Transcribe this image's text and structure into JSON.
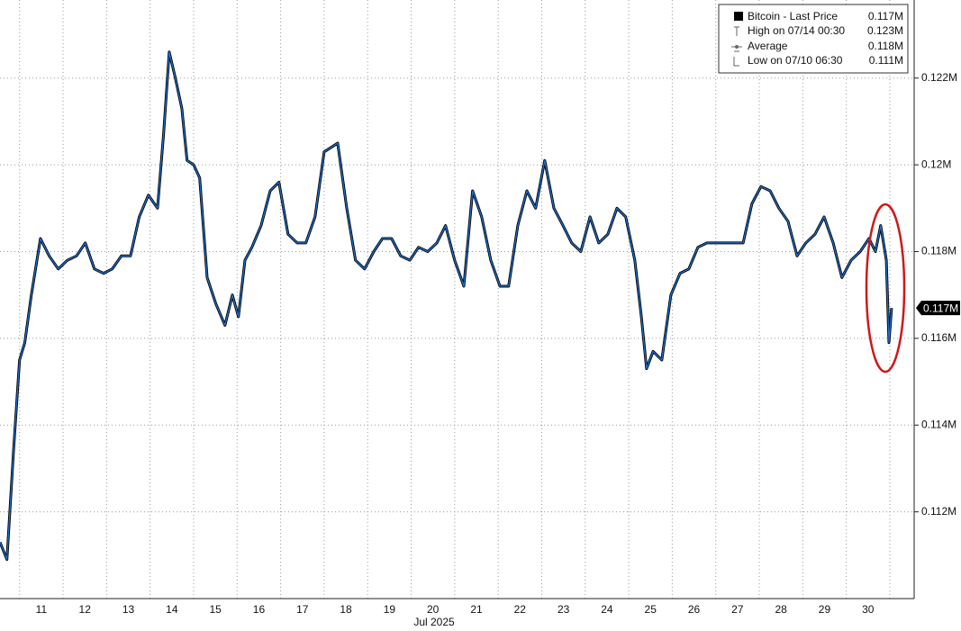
{
  "chart_data": {
    "type": "line",
    "x_label": "Jul 2025",
    "series": [
      {
        "name": "Bitcoin - Last Price",
        "color": "#1f6fd1",
        "values": [
          0.1113,
          0.1109,
          0.1134,
          0.1155,
          0.1159,
          0.117,
          0.1183,
          0.1179,
          0.1176,
          0.1178,
          0.1179,
          0.1182,
          0.1176,
          0.1175,
          0.1176,
          0.1179,
          0.1179,
          0.1188,
          0.1193,
          0.119,
          0.1207,
          0.1226,
          0.122,
          0.1213,
          0.1201,
          0.12,
          0.1197,
          0.1174,
          0.1168,
          0.1163,
          0.117,
          0.1165,
          0.1178,
          0.1181,
          0.1186,
          0.1194,
          0.1196,
          0.1184,
          0.1182,
          0.1182,
          0.1188,
          0.1203,
          0.1204,
          0.1205,
          0.119,
          0.1178,
          0.1176,
          0.118,
          0.1183,
          0.1183,
          0.1179,
          0.1178,
          0.1181,
          0.118,
          0.1182,
          0.1186,
          0.1178,
          0.1172,
          0.1194,
          0.1188,
          0.1178,
          0.1172,
          0.1172,
          0.1186,
          0.1194,
          0.119,
          0.1201,
          0.119,
          0.1186,
          0.1182,
          0.118,
          0.1188,
          0.1182,
          0.1184,
          0.119,
          0.1188,
          0.1178,
          0.1165,
          0.1153,
          0.1157,
          0.1155,
          0.117,
          0.1175,
          0.1176,
          0.1181,
          0.1182,
          0.1182,
          0.1182,
          0.1182,
          0.1182,
          0.1191,
          0.1195,
          0.1194,
          0.119,
          0.1187,
          0.1179,
          0.1182,
          0.1184,
          0.1188,
          0.1182,
          0.1174,
          0.1178,
          0.118,
          0.1183,
          0.118,
          0.1186,
          0.1178,
          0.1159,
          0.1167
        ]
      }
    ],
    "x": [
      10.55,
      10.71,
      10.86,
      11.0,
      11.12,
      11.27,
      11.48,
      11.68,
      11.89,
      12.1,
      12.31,
      12.51,
      12.72,
      12.93,
      13.13,
      13.34,
      13.55,
      13.75,
      13.96,
      14.17,
      14.31,
      14.44,
      14.58,
      14.73,
      14.85,
      15.0,
      15.14,
      15.31,
      15.51,
      15.72,
      15.89,
      16.03,
      16.18,
      16.34,
      16.55,
      16.76,
      16.96,
      17.17,
      17.38,
      17.58,
      17.79,
      18.0,
      18.16,
      18.31,
      18.52,
      18.72,
      18.93,
      19.14,
      19.34,
      19.55,
      19.76,
      19.97,
      20.17,
      20.38,
      20.59,
      20.79,
      21.0,
      21.21,
      21.41,
      21.62,
      21.83,
      22.04,
      22.24,
      22.45,
      22.66,
      22.86,
      23.07,
      23.28,
      23.49,
      23.69,
      23.9,
      24.11,
      24.31,
      24.52,
      24.73,
      24.93,
      25.14,
      25.29,
      25.41,
      25.56,
      25.76,
      25.97,
      26.18,
      26.38,
      26.59,
      26.8,
      27.0,
      27.21,
      27.42,
      27.63,
      27.83,
      28.04,
      28.25,
      28.45,
      28.66,
      28.87,
      29.07,
      29.28,
      29.49,
      29.7,
      29.9,
      30.11,
      30.32,
      30.52,
      30.67,
      30.79,
      30.92,
      30.98,
      31.04
    ],
    "xlim": [
      10.55,
      31.56
    ],
    "xgrid": [
      11,
      12,
      13,
      14,
      15,
      16,
      17,
      18,
      19,
      20,
      21,
      22,
      23,
      24,
      25,
      26,
      27,
      28,
      29,
      30,
      31
    ],
    "xticks": [
      {
        "value": 11.5,
        "label": "11"
      },
      {
        "value": 12.5,
        "label": "12"
      },
      {
        "value": 13.5,
        "label": "13"
      },
      {
        "value": 14.5,
        "label": "14"
      },
      {
        "value": 15.5,
        "label": "15"
      },
      {
        "value": 16.5,
        "label": "16"
      },
      {
        "value": 17.5,
        "label": "17"
      },
      {
        "value": 18.5,
        "label": "18"
      },
      {
        "value": 19.5,
        "label": "19"
      },
      {
        "value": 20.5,
        "label": "20"
      },
      {
        "value": 21.5,
        "label": "21"
      },
      {
        "value": 22.5,
        "label": "22"
      },
      {
        "value": 23.5,
        "label": "23"
      },
      {
        "value": 24.5,
        "label": "24"
      },
      {
        "value": 25.5,
        "label": "25"
      },
      {
        "value": 26.5,
        "label": "26"
      },
      {
        "value": 27.5,
        "label": "27"
      },
      {
        "value": 28.5,
        "label": "28"
      },
      {
        "value": 29.5,
        "label": "29"
      },
      {
        "value": 30.5,
        "label": "30"
      }
    ],
    "ylim": [
      0.11,
      0.1238
    ],
    "yticks": [
      {
        "value": 0.112,
        "label": "0.112M"
      },
      {
        "value": 0.114,
        "label": "0.114M"
      },
      {
        "value": 0.116,
        "label": "0.116M"
      },
      {
        "value": 0.118,
        "label": "0.118M"
      },
      {
        "value": 0.12,
        "label": "0.12M"
      },
      {
        "value": 0.122,
        "label": "0.122M"
      }
    ],
    "last_price": {
      "value": 0.1167,
      "label": "0.117M"
    },
    "legend_value": "0.117M",
    "legend_items": [
      {
        "label": "High on 07/14 00:30",
        "value_label": "0.123M"
      },
      {
        "label": "Average",
        "value_label": "0.118M"
      },
      {
        "label": "Low on 07/10 06:30",
        "value_label": "0.111M"
      }
    ],
    "grid": true
  }
}
